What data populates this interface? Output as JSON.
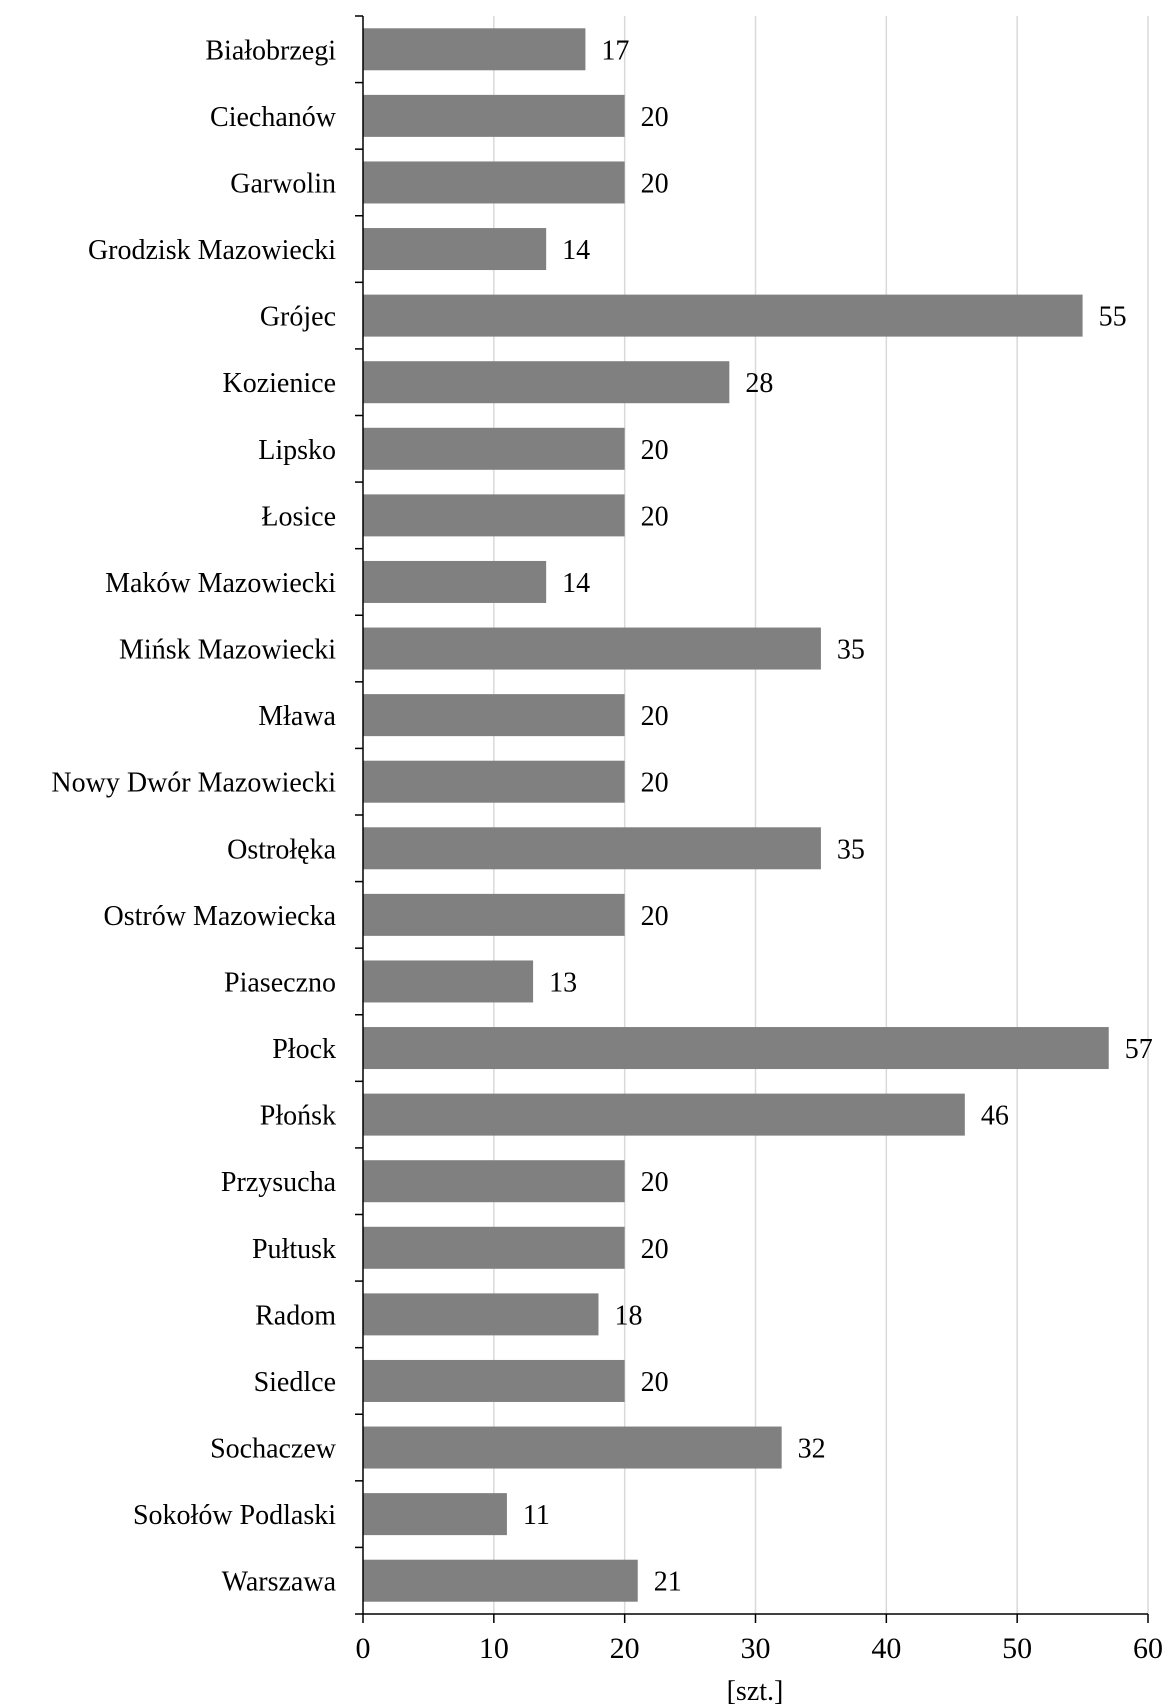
{
  "chart_data": {
    "type": "bar",
    "orientation": "horizontal",
    "categories": [
      "Białobrzegi",
      "Ciechanów",
      "Garwolin",
      "Grodzisk Mazowiecki",
      "Grójec",
      "Kozienice",
      "Lipsko",
      "Łosice",
      "Maków Mazowiecki",
      "Mińsk Mazowiecki",
      "Mława",
      "Nowy Dwór Mazowiecki",
      "Ostrołęka",
      "Ostrów Mazowiecka",
      "Piaseczno",
      "Płock",
      "Płońsk",
      "Przysucha",
      "Pułtusk",
      "Radom",
      "Siedlce",
      "Sochaczew",
      "Sokołów Podlaski",
      "Warszawa"
    ],
    "values": [
      17,
      20,
      20,
      14,
      55,
      28,
      20,
      20,
      14,
      35,
      20,
      20,
      35,
      20,
      13,
      57,
      46,
      20,
      20,
      18,
      20,
      32,
      11,
      21
    ],
    "xlabel": "[szt.]",
    "xlim": [
      0,
      60
    ],
    "xticks": [
      0,
      10,
      20,
      30,
      40,
      50,
      60
    ],
    "grid": "vertical",
    "bar_color": "#808080",
    "grid_color": "#d9d9d9"
  }
}
